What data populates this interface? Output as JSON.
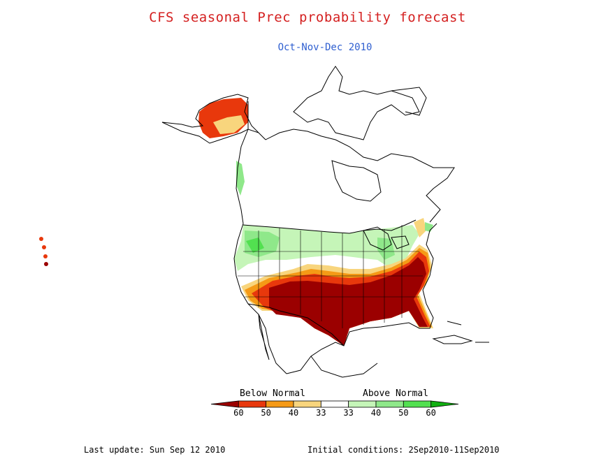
{
  "title": "CFS seasonal Prec probability forecast",
  "subtitle": "Oct-Nov-Dec 2010",
  "legend": {
    "below_label": "Below Normal",
    "above_label": "Above Normal",
    "tick_labels": [
      "60",
      "50",
      "40",
      "33",
      "33",
      "40",
      "50",
      "60"
    ],
    "colors": [
      "#9b0000",
      "#e8380c",
      "#f59a16",
      "#f8d57d",
      "#ffffff",
      "#c5f5b8",
      "#8fe88a",
      "#52e050",
      "#12b012"
    ]
  },
  "footer": {
    "last_update": "Last update: Sun Sep 12 2010",
    "initial_conditions": "Initial conditions: 2Sep2010-11Sep2010"
  }
}
